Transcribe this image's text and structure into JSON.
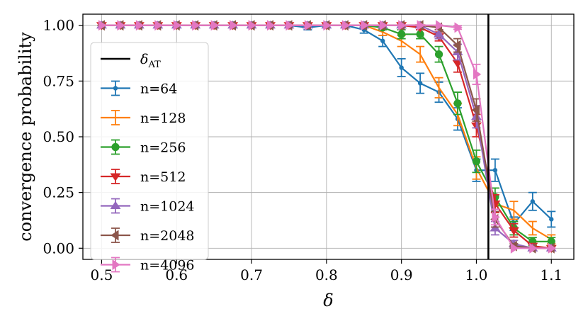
{
  "chart_data": {
    "type": "line",
    "xlabel": "δ",
    "ylabel": "convergence probability",
    "xlim": [
      0.475,
      1.13
    ],
    "ylim": [
      -0.05,
      1.05
    ],
    "xticks": [
      0.5,
      0.6,
      0.7,
      0.8,
      0.9,
      1.0,
      1.1
    ],
    "xtick_labels": [
      "0.5",
      "0.6",
      "0.7",
      "0.8",
      "0.9",
      "1.0",
      "1.1"
    ],
    "yticks": [
      0.0,
      0.25,
      0.5,
      0.75,
      1.0
    ],
    "ytick_labels": [
      "0.00",
      "0.25",
      "0.50",
      "0.75",
      "1.00"
    ],
    "grid": true,
    "legend_position": "left",
    "vline": {
      "x": 1.016,
      "label_main": "δ",
      "label_sub": "AT",
      "color": "#000000"
    },
    "x": [
      0.5,
      0.525,
      0.55,
      0.575,
      0.6,
      0.625,
      0.65,
      0.675,
      0.7,
      0.725,
      0.75,
      0.775,
      0.8,
      0.825,
      0.85,
      0.875,
      0.9,
      0.925,
      0.95,
      0.975,
      1.0,
      1.025,
      1.05,
      1.075,
      1.1
    ],
    "series": [
      {
        "name": "n=64",
        "color": "#1f77b4",
        "marker": "point",
        "values": [
          1.0,
          1.0,
          1.0,
          1.0,
          1.0,
          1.0,
          1.0,
          1.0,
          1.0,
          1.0,
          1.0,
          0.99,
          1.0,
          1.0,
          0.98,
          0.93,
          0.81,
          0.74,
          0.7,
          0.58,
          0.35,
          0.35,
          0.11,
          0.21,
          0.13
        ],
        "errors": [
          0,
          0,
          0,
          0,
          0,
          0,
          0,
          0,
          0,
          0,
          0,
          0.01,
          0,
          0,
          0.015,
          0.025,
          0.04,
          0.045,
          0.045,
          0.05,
          0.05,
          0.05,
          0.03,
          0.04,
          0.035
        ]
      },
      {
        "name": "n=128",
        "color": "#ff7f0e",
        "marker": "none",
        "values": [
          1.0,
          1.0,
          1.0,
          1.0,
          1.0,
          1.0,
          1.0,
          1.0,
          1.0,
          1.0,
          1.0,
          1.0,
          1.0,
          1.0,
          1.0,
          0.97,
          0.93,
          0.87,
          0.72,
          0.6,
          0.36,
          0.2,
          0.17,
          0.09,
          0.04
        ],
        "errors": [
          0,
          0,
          0,
          0,
          0,
          0,
          0,
          0,
          0,
          0,
          0,
          0,
          0,
          0,
          0,
          0.015,
          0.025,
          0.035,
          0.045,
          0.05,
          0.05,
          0.04,
          0.04,
          0.03,
          0.02
        ]
      },
      {
        "name": "n=256",
        "color": "#2ca02c",
        "marker": "circle",
        "values": [
          1.0,
          1.0,
          1.0,
          1.0,
          1.0,
          1.0,
          1.0,
          1.0,
          1.0,
          1.0,
          1.0,
          1.0,
          1.0,
          1.0,
          1.0,
          0.99,
          0.96,
          0.96,
          0.87,
          0.65,
          0.39,
          0.23,
          0.09,
          0.03,
          0.03
        ],
        "errors": [
          0,
          0,
          0,
          0,
          0,
          0,
          0,
          0,
          0,
          0,
          0,
          0,
          0,
          0,
          0,
          0.01,
          0.02,
          0.02,
          0.035,
          0.05,
          0.05,
          0.04,
          0.03,
          0.018,
          0.018
        ]
      },
      {
        "name": "n=512",
        "color": "#d62728",
        "marker": "triangle-down",
        "values": [
          1.0,
          1.0,
          1.0,
          1.0,
          1.0,
          1.0,
          1.0,
          1.0,
          1.0,
          1.0,
          1.0,
          1.0,
          1.0,
          1.0,
          1.0,
          1.0,
          1.0,
          0.99,
          0.95,
          0.83,
          0.55,
          0.2,
          0.08,
          0.01,
          0.0
        ],
        "errors": [
          0,
          0,
          0,
          0,
          0,
          0,
          0,
          0,
          0,
          0,
          0,
          0,
          0,
          0,
          0,
          0,
          0,
          0.01,
          0.02,
          0.04,
          0.05,
          0.04,
          0.03,
          0.01,
          0.0
        ]
      },
      {
        "name": "n=1024",
        "color": "#9467bd",
        "marker": "triangle-up",
        "values": [
          1.0,
          1.0,
          1.0,
          1.0,
          1.0,
          1.0,
          1.0,
          1.0,
          1.0,
          1.0,
          1.0,
          1.0,
          1.0,
          1.0,
          1.0,
          1.0,
          1.0,
          1.0,
          0.96,
          0.88,
          0.59,
          0.09,
          0.02,
          0.0,
          0.0
        ],
        "errors": [
          0,
          0,
          0,
          0,
          0,
          0,
          0,
          0,
          0,
          0,
          0,
          0,
          0,
          0,
          0,
          0,
          0,
          0,
          0.02,
          0.035,
          0.05,
          0.03,
          0.015,
          0.0,
          0.0
        ]
      },
      {
        "name": "n=2048",
        "color": "#8c564b",
        "marker": "triangle-left",
        "values": [
          1.0,
          1.0,
          1.0,
          1.0,
          1.0,
          1.0,
          1.0,
          1.0,
          1.0,
          1.0,
          1.0,
          1.0,
          1.0,
          1.0,
          1.0,
          1.0,
          1.0,
          1.0,
          0.99,
          0.91,
          0.62,
          0.13,
          0.01,
          0.0,
          0.0
        ],
        "errors": [
          0,
          0,
          0,
          0,
          0,
          0,
          0,
          0,
          0,
          0,
          0,
          0,
          0,
          0,
          0,
          0,
          0,
          0,
          0.01,
          0.03,
          0.05,
          0.035,
          0.01,
          0.0,
          0.0
        ]
      },
      {
        "name": "n=4096",
        "color": "#e377c2",
        "marker": "triangle-right",
        "values": [
          1.0,
          1.0,
          1.0,
          1.0,
          1.0,
          1.0,
          1.0,
          1.0,
          1.0,
          1.0,
          1.0,
          1.0,
          1.0,
          1.0,
          1.0,
          1.0,
          1.0,
          1.0,
          1.0,
          0.99,
          0.78,
          0.14,
          0.0,
          0.0,
          0.0
        ],
        "errors": [
          0,
          0,
          0,
          0,
          0,
          0,
          0,
          0,
          0,
          0,
          0,
          0,
          0,
          0,
          0,
          0,
          0,
          0,
          0,
          0.008,
          0.045,
          0.035,
          0.0,
          0.0,
          0.0
        ]
      }
    ]
  }
}
